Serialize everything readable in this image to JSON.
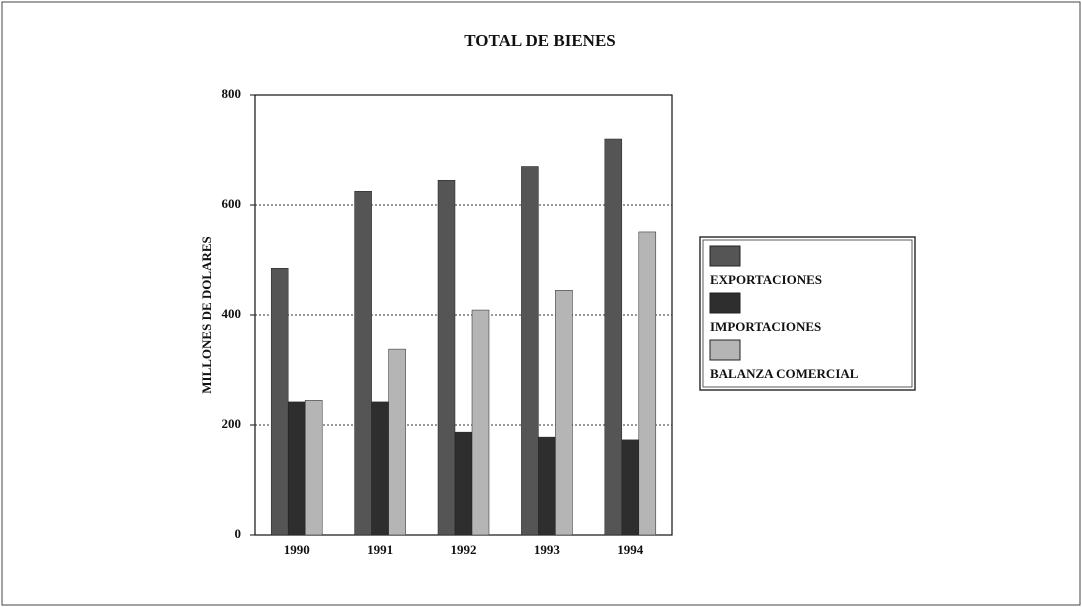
{
  "chart_data": {
    "type": "bar",
    "title": "TOTAL DE BIENES",
    "y_label": "MILLONES DE DOLARES",
    "categories": [
      "1990",
      "1991",
      "1992",
      "1993",
      "1994"
    ],
    "series": [
      {
        "name": "EXPORTACIONES",
        "color": "#555555",
        "values": [
          485,
          625,
          645,
          670,
          720
        ]
      },
      {
        "name": "IMPORTACIONES",
        "color": "#2e2e2e",
        "values": [
          242,
          242,
          187,
          178,
          173
        ]
      },
      {
        "name": "BALANZA COMERCIAL",
        "color": "#b5b5b5",
        "values": [
          245,
          338,
          409,
          445,
          551
        ]
      }
    ],
    "ylim": [
      0,
      800
    ],
    "yticks": [
      0,
      200,
      400,
      600,
      800
    ],
    "grid": true,
    "legend": "right"
  }
}
